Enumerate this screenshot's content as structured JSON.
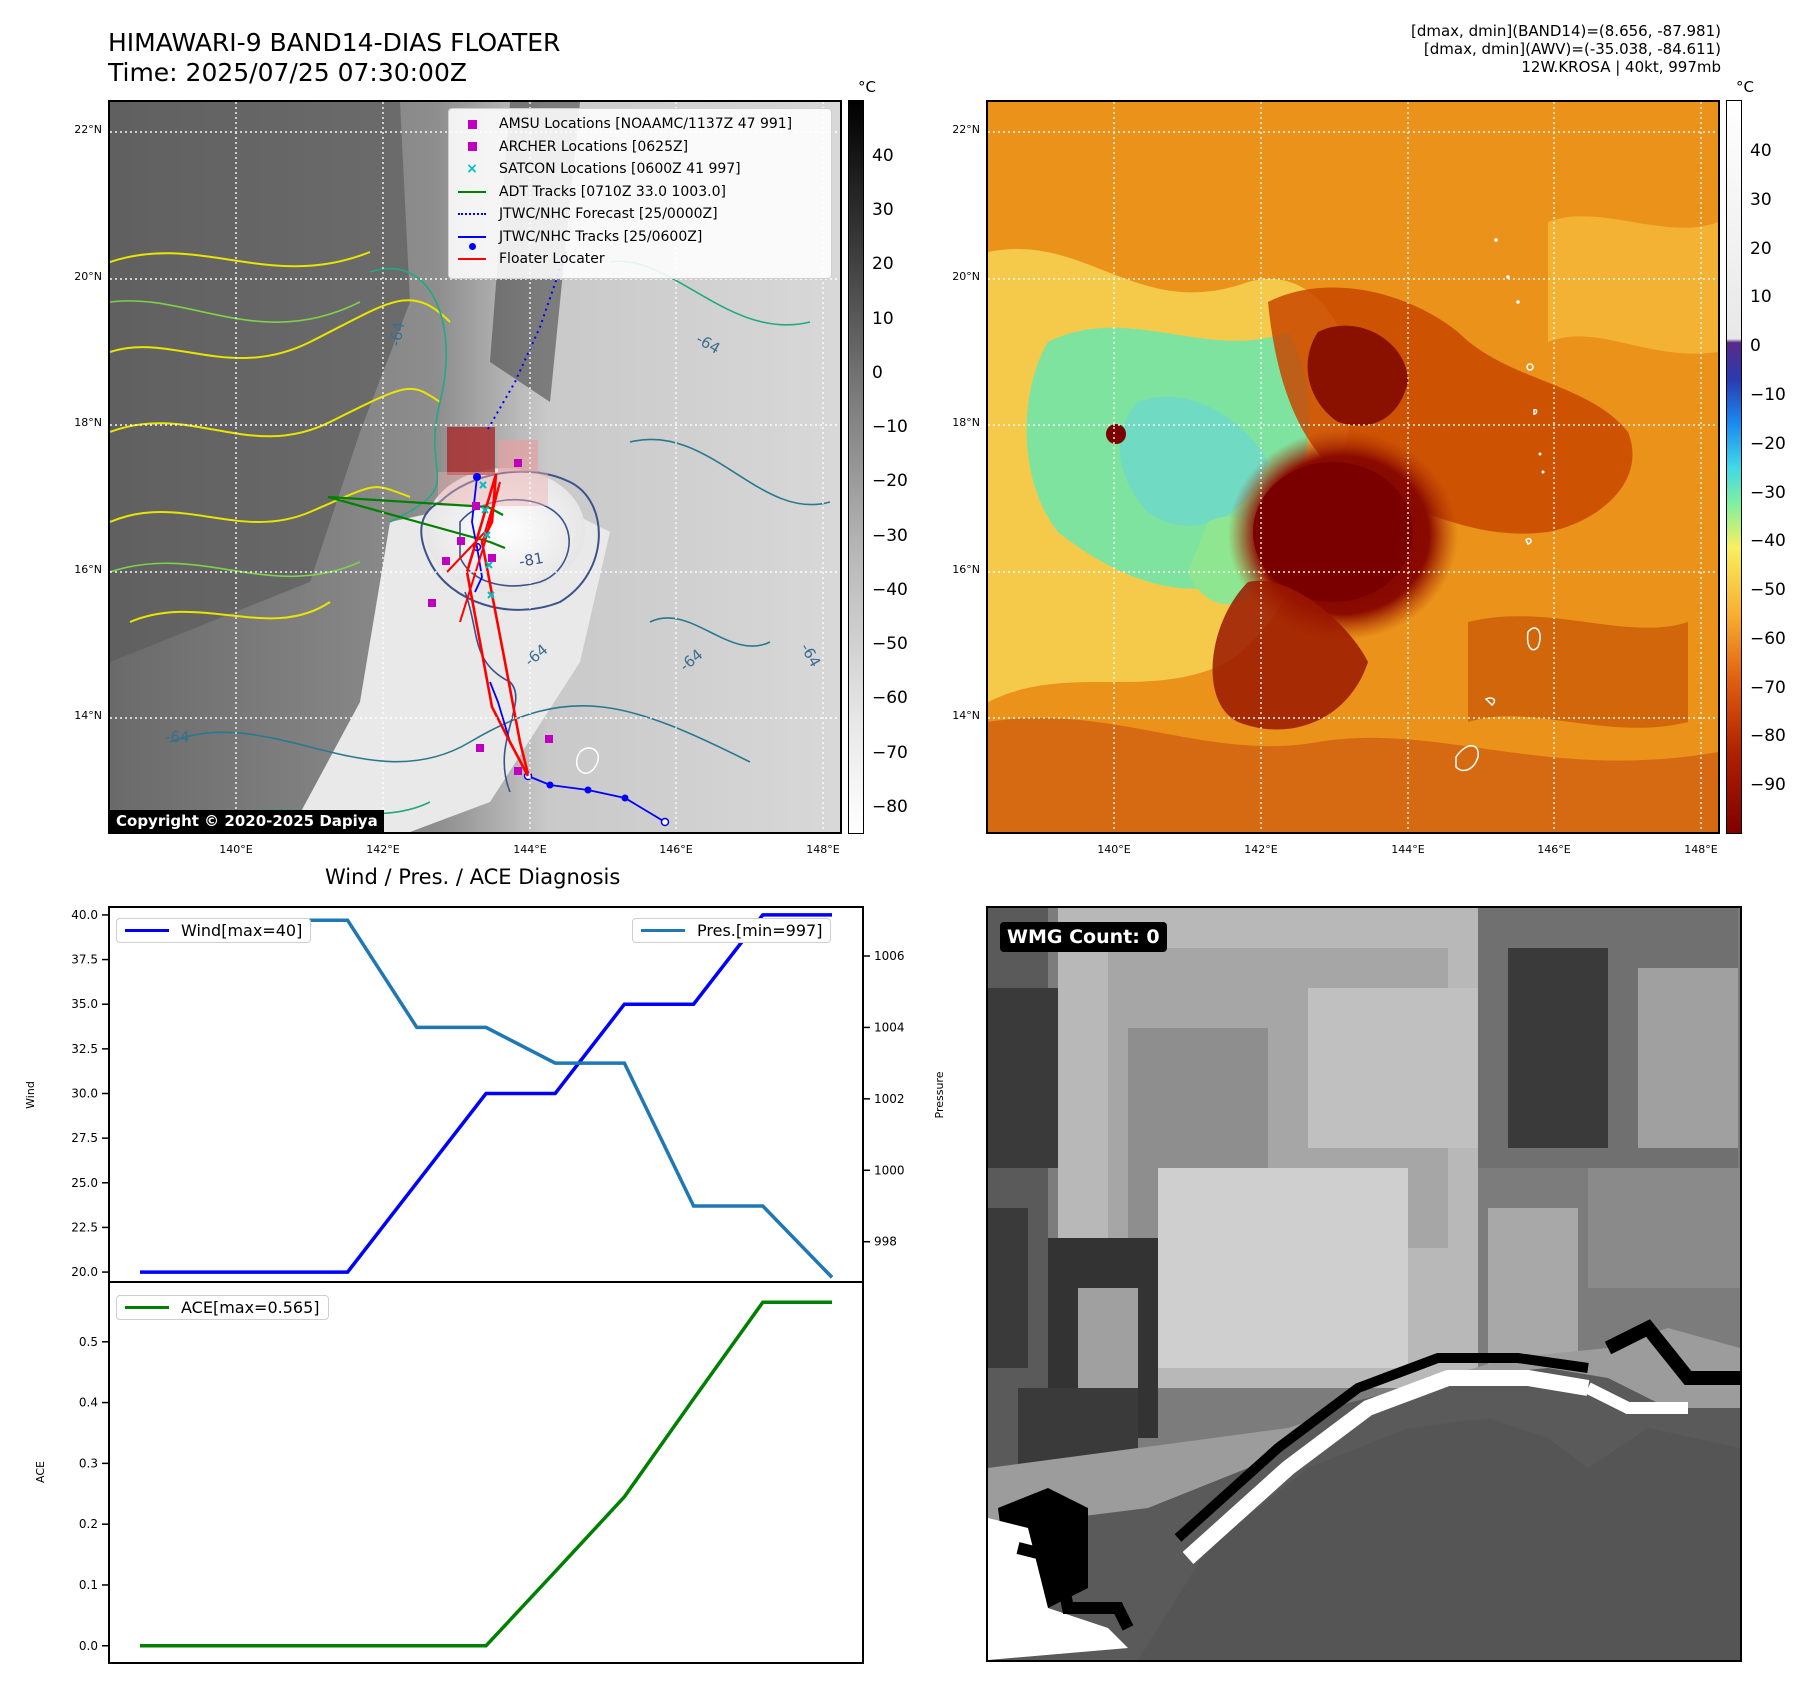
{
  "header": {
    "title_line1": "HIMAWARI-9 BAND14-DIAS FLOATER",
    "title_line2": "Time: 2025/07/25 07:30:00Z",
    "info_line1": "[dmax, dmin](BAND14)=(8.656, -87.981)",
    "info_line2": "[dmax, dmin](AWV)=(-35.038, -84.611)",
    "info_line3": "12W.KROSA | 40kt, 997mb"
  },
  "map_axes": {
    "lat_labels": [
      "22°N",
      "20°N",
      "18°N",
      "16°N",
      "14°N"
    ],
    "lon_labels": [
      "140°E",
      "142°E",
      "144°E",
      "146°E",
      "148°E"
    ]
  },
  "colorbar_left": {
    "unit": "°C",
    "ticks": [
      "40",
      "30",
      "20",
      "10",
      "0",
      "−10",
      "−20",
      "−30",
      "−40",
      "−50",
      "−60",
      "−70",
      "−80"
    ]
  },
  "colorbar_right": {
    "unit": "°C",
    "ticks": [
      "40",
      "30",
      "20",
      "10",
      "0",
      "−10",
      "−20",
      "−30",
      "−40",
      "−50",
      "−60",
      "−70",
      "−80",
      "−90"
    ]
  },
  "legend": {
    "items": [
      {
        "label": "AMSU Locations [NOAAMC/1137Z 47 991]",
        "symbol": "square",
        "color": "#c000c0"
      },
      {
        "label": "ARCHER Locations [0625Z]",
        "symbol": "square",
        "color": "#c000c0"
      },
      {
        "label": "SATCON Locations [0600Z 41 997]",
        "symbol": "x",
        "color": "#00bfbf"
      },
      {
        "label": "ADT Tracks [0710Z 33.0 1003.0]",
        "symbol": "line",
        "color": "#008000"
      },
      {
        "label": "JTWC/NHC Forecast [25/0000Z]",
        "symbol": "dotted",
        "color": "#0000ff"
      },
      {
        "label": "JTWC/NHC Tracks [25/0600Z]",
        "symbol": "line-dot",
        "color": "#0000ff"
      },
      {
        "label": "Floater Locater",
        "symbol": "line",
        "color": "#ff0000"
      }
    ]
  },
  "copyright": "Copyright © 2020-2025 Dapiya",
  "contour_labels": [
    "-64",
    "-64",
    "-64",
    "-64",
    "-81",
    "-64",
    "-64"
  ],
  "diagnosis_title": "Wind / Pres. / ACE Diagnosis",
  "wmg_label": "WMG Count: 0",
  "colors": {
    "wind": "#0000ff",
    "pressure": "#1f77b4",
    "ace": "#008000",
    "floater": "#ff0000"
  },
  "chart_data": [
    {
      "type": "line",
      "title": "Wind / Pres. / ACE Diagnosis",
      "ylabel": "Wind",
      "y2label": "Pressure",
      "ylim": [
        19.5,
        40.5
      ],
      "y2lim": [
        996.9,
        1007.4
      ],
      "yticks": [
        "40.0",
        "37.5",
        "35.0",
        "32.5",
        "30.0",
        "27.5",
        "25.0",
        "22.5",
        "20.0"
      ],
      "y2ticks": [
        "1006",
        "1004",
        "1002",
        "1000",
        "998"
      ],
      "x": [
        0,
        1,
        2,
        3,
        4,
        5,
        6,
        7,
        8,
        9,
        10
      ],
      "series": [
        {
          "name": "Wind[max=40]",
          "axis": "left",
          "values": [
            20,
            20,
            20,
            20,
            25,
            30,
            30,
            35,
            35,
            40,
            40
          ]
        },
        {
          "name": "Pres.[min=997]",
          "axis": "right",
          "values": [
            1007,
            1007,
            1007,
            1007,
            1004,
            1004,
            1003,
            1003,
            999,
            999,
            997
          ]
        }
      ]
    },
    {
      "type": "line",
      "ylabel": "ACE",
      "ylim": [
        -0.03,
        0.6
      ],
      "yticks": [
        "0.5",
        "0.4",
        "0.3",
        "0.2",
        "0.1",
        "0.0"
      ],
      "x": [
        0,
        1,
        2,
        3,
        4,
        5,
        6,
        7,
        8,
        9,
        10
      ],
      "series": [
        {
          "name": "ACE[max=0.565]",
          "values": [
            0,
            0,
            0,
            0,
            0,
            0,
            0.122,
            0.245,
            0.406,
            0.565,
            0.565
          ]
        }
      ]
    }
  ]
}
